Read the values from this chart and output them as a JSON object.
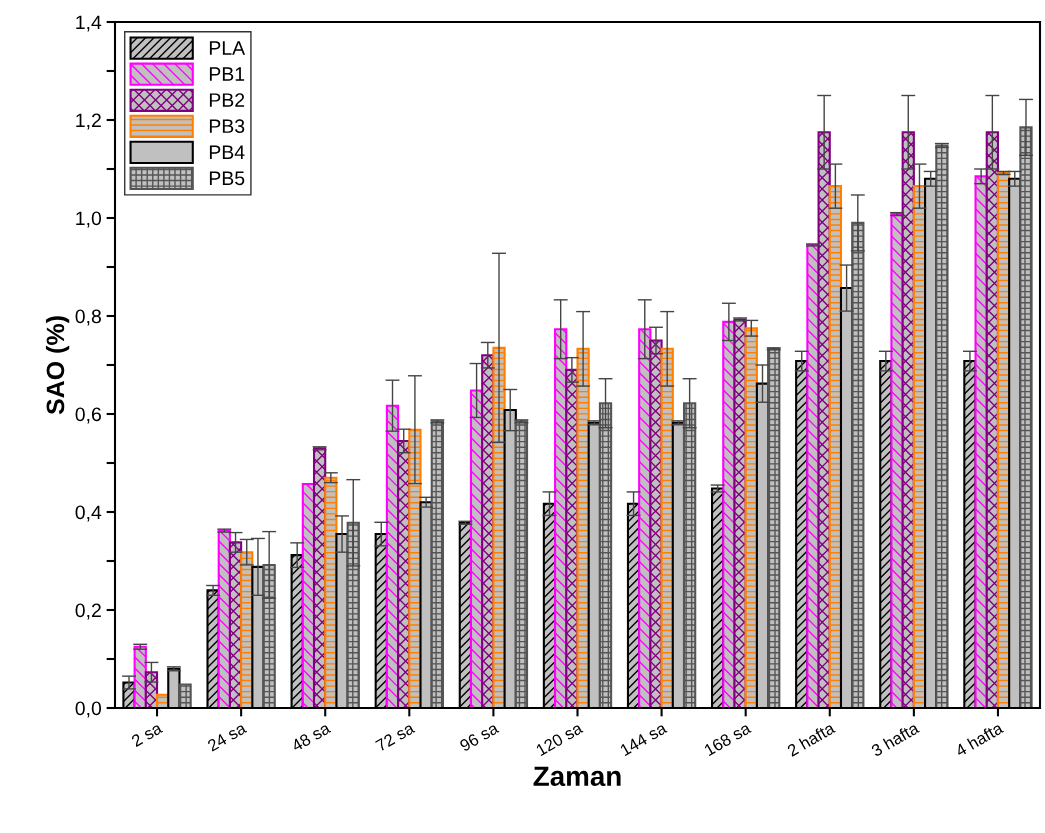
{
  "chart_data": {
    "type": "bar",
    "xlabel": "Zaman",
    "ylabel": "SAO (%)",
    "categories": [
      "2 sa",
      "24 sa",
      "48 sa",
      "72 sa",
      "96 sa",
      "120 sa",
      "144 sa",
      "168 sa",
      "2 hafta",
      "3 hafta",
      "4 hafta"
    ],
    "ylim": [
      0,
      1.4
    ],
    "yticks": [
      {
        "value": 0,
        "label": "0,0"
      },
      {
        "value": 0.1,
        "label": null
      },
      {
        "value": 0.2,
        "label": "0,2"
      },
      {
        "value": 0.3,
        "label": null
      },
      {
        "value": 0.4,
        "label": "0,4"
      },
      {
        "value": 0.5,
        "label": null
      },
      {
        "value": 0.6,
        "label": "0,6"
      },
      {
        "value": 0.7,
        "label": null
      },
      {
        "value": 0.8,
        "label": "0,8"
      },
      {
        "value": 0.9,
        "label": null
      },
      {
        "value": 1.0,
        "label": "1,0"
      },
      {
        "value": 1.1,
        "label": null
      },
      {
        "value": 1.2,
        "label": "1,2"
      },
      {
        "value": 1.3,
        "label": null
      },
      {
        "value": 1.4,
        "label": "1,4"
      }
    ],
    "grid": false,
    "legend": "top left",
    "series": [
      {
        "name": "PLA",
        "color": "#000000",
        "values": [
          0.052,
          0.24,
          0.312,
          0.355,
          0.378,
          0.417,
          0.417,
          0.448,
          0.708,
          0.708,
          0.708
        ],
        "errors": [
          0.013,
          0.01,
          0.025,
          0.024,
          0.003,
          0.024,
          0.024,
          0.007,
          0.02,
          0.02,
          0.02
        ]
      },
      {
        "name": "PB1",
        "color": "#ff00ff",
        "values": [
          0.125,
          0.362,
          0.457,
          0.617,
          0.648,
          0.773,
          0.773,
          0.788,
          0.945,
          1.008,
          1.085
        ],
        "errors": [
          0.005,
          0.003,
          null,
          0.052,
          0.055,
          0.06,
          0.06,
          0.038,
          0.002,
          0.003,
          0.015
        ]
      },
      {
        "name": "PB2",
        "color": "#800080",
        "values": [
          0.073,
          0.338,
          0.53,
          0.545,
          0.72,
          0.69,
          0.75,
          0.793,
          1.175,
          1.175,
          1.175
        ],
        "errors": [
          0.02,
          0.02,
          0.003,
          0.024,
          0.026,
          0.025,
          0.027,
          0.003,
          0.075,
          0.075,
          0.075
        ]
      },
      {
        "name": "PB3",
        "color": "#ff8000",
        "values": [
          0.027,
          0.318,
          0.47,
          0.568,
          0.735,
          0.733,
          0.733,
          0.775,
          1.065,
          1.065,
          1.092
        ],
        "errors": [
          null,
          0.026,
          0.01,
          0.11,
          0.193,
          0.076,
          0.076,
          0.016,
          0.045,
          0.045,
          0.003
        ]
      },
      {
        "name": "PB4",
        "color": "#c0c0c0",
        "values": [
          0.08,
          0.288,
          0.355,
          0.42,
          0.608,
          0.582,
          0.582,
          0.662,
          0.857,
          1.08,
          1.08
        ],
        "errors": [
          0.004,
          0.058,
          0.037,
          0.01,
          0.042,
          0.004,
          0.004,
          0.038,
          0.047,
          0.015,
          0.015
        ]
      },
      {
        "name": "PB5",
        "color": "#555555",
        "values": [
          0.048,
          0.292,
          0.378,
          0.585,
          0.585,
          0.622,
          0.622,
          0.733,
          0.99,
          1.148,
          1.185
        ],
        "errors": [
          null,
          0.068,
          0.088,
          0.003,
          0.003,
          0.05,
          0.05,
          0.002,
          0.057,
          0.004,
          0.057
        ]
      }
    ]
  }
}
